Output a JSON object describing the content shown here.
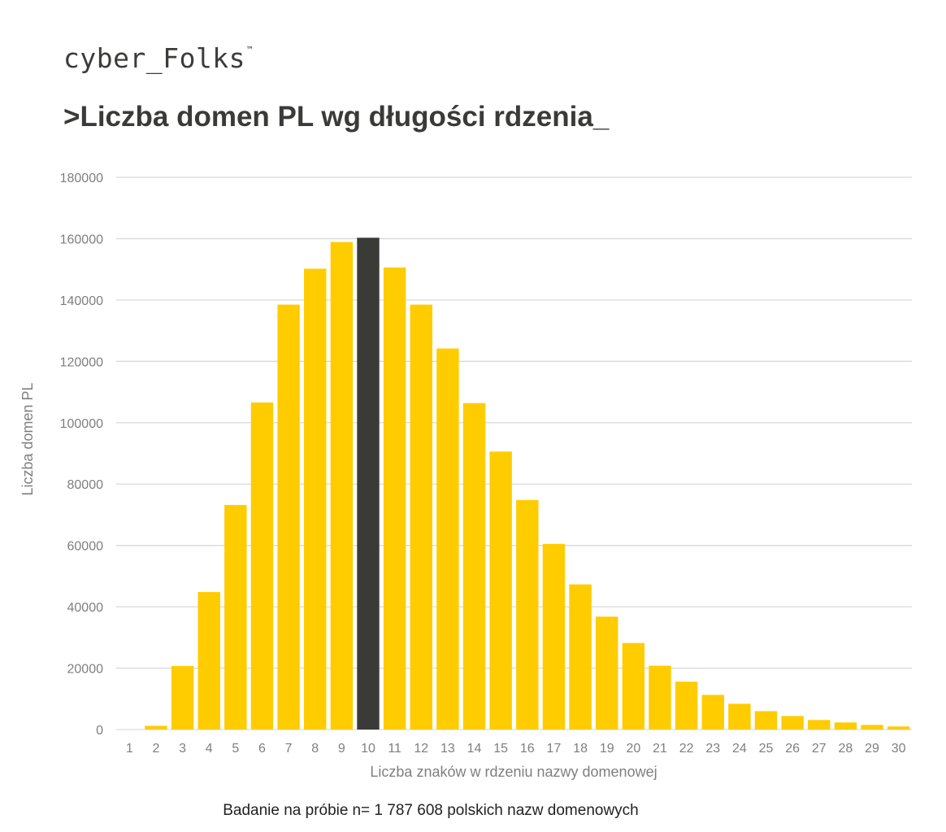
{
  "brand": {
    "name": "cyber_Folks",
    "trademark": "™"
  },
  "title": ">Liczba domen PL wg długości rdzenia_",
  "footnote": {
    "prefix": "Badanie na próbie",
    "value": "n= 1 787 608 polskich nazw domenowych"
  },
  "colors": {
    "bar": "#ffcc00",
    "highlight": "#3a3a36",
    "grid": "#d9d9d9",
    "axis_text": "#7f7f7f"
  },
  "chart_data": {
    "type": "bar",
    "title": ">Liczba domen PL wg długości rdzenia_",
    "xlabel": "Liczba znaków w rdzeniu nazwy domenowej",
    "ylabel": "Liczba domen PL",
    "ylim": [
      0,
      180000
    ],
    "yticks": [
      0,
      20000,
      40000,
      60000,
      80000,
      100000,
      120000,
      140000,
      160000,
      180000
    ],
    "grid": true,
    "legend": "none",
    "highlight_category": "10",
    "categories": [
      "1",
      "2",
      "3",
      "4",
      "5",
      "6",
      "7",
      "8",
      "9",
      "10",
      "11",
      "12",
      "13",
      "14",
      "15",
      "16",
      "17",
      "18",
      "19",
      "20",
      "21",
      "22",
      "23",
      "24",
      "25",
      "26",
      "27",
      "28",
      "29",
      "30"
    ],
    "series": [
      {
        "values": [
          0,
          1200,
          20700,
          44800,
          73200,
          106600,
          138500,
          150200,
          158900,
          160300,
          150600,
          138500,
          124200,
          106400,
          90600,
          74800,
          60500,
          47300,
          36800,
          28200,
          20800,
          15600,
          11300,
          8400,
          6000,
          4400,
          3100,
          2300,
          1500,
          1000
        ]
      }
    ]
  }
}
